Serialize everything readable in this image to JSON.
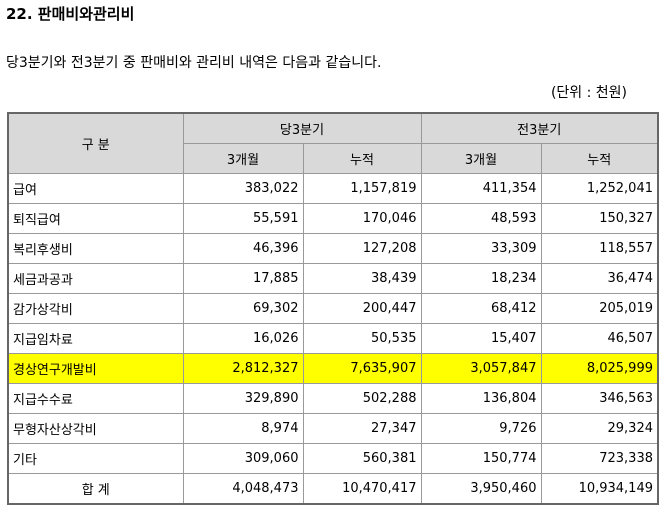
{
  "header": {
    "title": "22. 판매비와관리비"
  },
  "intro": "당3분기와 전3분기 중 판매비와 관리비 내역은 다음과 같습니다.",
  "unit": "(단위 : 천원)",
  "table": {
    "head": {
      "item": "구 분",
      "groups": [
        "당3분기",
        "전3분기"
      ],
      "subheaders": [
        "3개월",
        "누적",
        "3개월",
        "누적"
      ]
    },
    "rows": [
      [
        "급여",
        "383,022",
        "1,157,819",
        "411,354",
        "1,252,041"
      ],
      [
        "퇴직급여",
        "55,591",
        "170,046",
        "48,593",
        "150,327"
      ],
      [
        "복리후생비",
        "46,396",
        "127,208",
        "33,309",
        "118,557"
      ],
      [
        "세금과공과",
        "17,885",
        "38,439",
        "18,234",
        "36,474"
      ],
      [
        "감가상각비",
        "69,302",
        "200,447",
        "68,412",
        "205,019"
      ],
      [
        "지급임차료",
        "16,026",
        "50,535",
        "15,407",
        "46,507"
      ],
      [
        "경상연구개발비",
        "2,812,327",
        "7,635,907",
        "3,057,847",
        "8,025,999"
      ],
      [
        "지급수수료",
        "329,890",
        "502,288",
        "136,804",
        "346,563"
      ],
      [
        "무형자산상각비",
        "8,974",
        "27,347",
        "9,726",
        "29,324"
      ],
      [
        "기타",
        "309,060",
        "560,381",
        "150,774",
        "723,338"
      ],
      [
        "합 계",
        "4,048,473",
        "10,470,417",
        "3,950,460",
        "10,934,149"
      ]
    ],
    "highlight": {
      "row": 6,
      "color": "#ffff00"
    }
  }
}
